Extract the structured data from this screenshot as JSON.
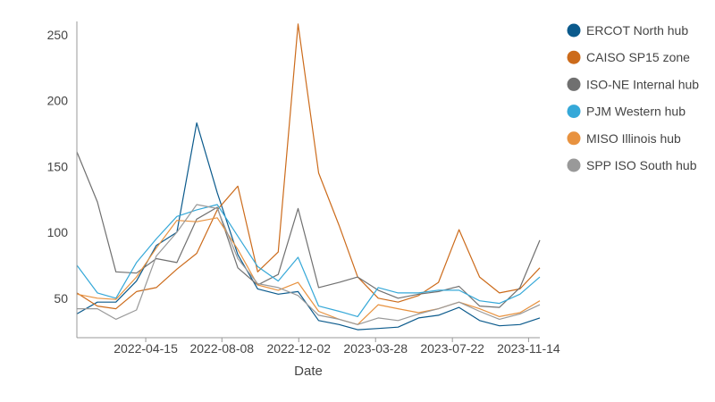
{
  "chart_data": {
    "type": "line",
    "title": "",
    "xlabel": "Date",
    "ylabel": "",
    "x": [
      "2022-01-01",
      "2022-02-01",
      "2022-03-01",
      "2022-04-01",
      "2022-05-01",
      "2022-06-01",
      "2022-07-01",
      "2022-08-01",
      "2022-09-01",
      "2022-10-01",
      "2022-11-01",
      "2022-12-01",
      "2023-01-01",
      "2023-02-01",
      "2023-03-01",
      "2023-04-01",
      "2023-05-01",
      "2023-06-01",
      "2023-07-01",
      "2023-08-01",
      "2023-09-01",
      "2023-10-01",
      "2023-11-01",
      "2023-12-01"
    ],
    "x_ticks": [
      "2022-04-15",
      "2022-08-08",
      "2022-12-02",
      "2023-03-28",
      "2023-07-22",
      "2023-11-14"
    ],
    "y_ticks": [
      50,
      100,
      150,
      200,
      250
    ],
    "ylim": [
      20,
      260
    ],
    "grid": false,
    "legend_position": "right",
    "series": [
      {
        "name": "ERCOT North hub",
        "color": "#0b5a8c",
        "values": [
          38,
          47,
          47,
          63,
          90,
          100,
          183,
          130,
          83,
          57,
          53,
          55,
          33,
          30,
          26,
          27,
          28,
          35,
          37,
          43,
          33,
          29,
          30,
          35
        ]
      },
      {
        "name": "CAISO SP15 zone",
        "color": "#cc6b1b",
        "values": [
          54,
          44,
          42,
          55,
          58,
          72,
          84,
          117,
          135,
          70,
          85,
          258,
          145,
          105,
          66,
          50,
          47,
          52,
          62,
          102,
          66,
          54,
          57,
          73
        ]
      },
      {
        "name": "ISO-NE Internal hub",
        "color": "#707070",
        "values": [
          161,
          123,
          70,
          69,
          80,
          77,
          110,
          119,
          73,
          60,
          68,
          118,
          58,
          62,
          66,
          56,
          50,
          53,
          55,
          59,
          44,
          43,
          58,
          94
        ]
      },
      {
        "name": "PJM Western hub",
        "color": "#35a8d8",
        "values": [
          75,
          54,
          50,
          77,
          95,
          112,
          117,
          121,
          97,
          74,
          63,
          81,
          44,
          40,
          36,
          58,
          54,
          54,
          56,
          56,
          48,
          46,
          53,
          66
        ]
      },
      {
        "name": "MISO Illinois hub",
        "color": "#e8923f",
        "values": [
          53,
          50,
          49,
          66,
          88,
          109,
          108,
          111,
          87,
          60,
          56,
          62,
          40,
          34,
          30,
          45,
          42,
          39,
          42,
          47,
          42,
          36,
          39,
          48
        ]
      },
      {
        "name": "SPP ISO South hub",
        "color": "#999999",
        "values": [
          42,
          42,
          34,
          41,
          82,
          100,
          121,
          118,
          80,
          61,
          58,
          52,
          37,
          34,
          30,
          35,
          33,
          38,
          42,
          47,
          40,
          34,
          38,
          45
        ]
      }
    ]
  }
}
